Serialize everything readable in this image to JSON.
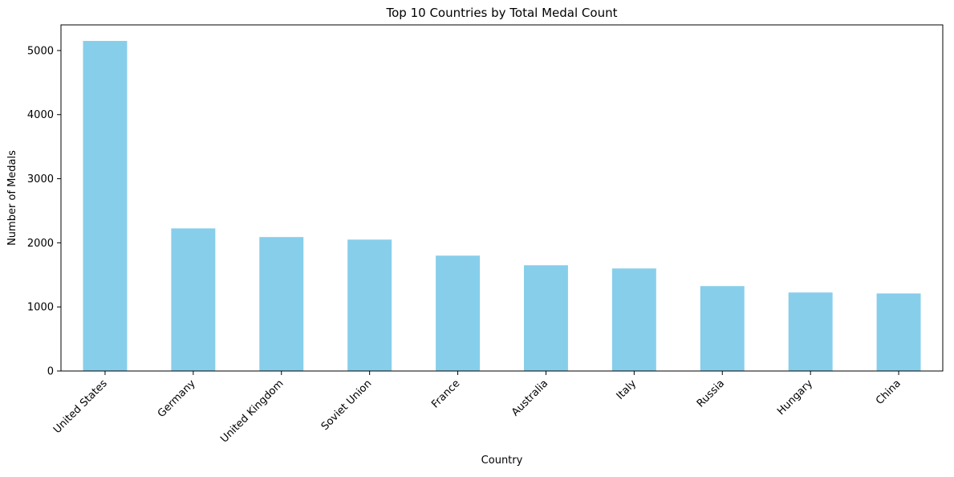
{
  "chart_data": {
    "type": "bar",
    "title": "Top 10 Countries by Total Medal Count",
    "xlabel": "Country",
    "ylabel": "Number of Medals",
    "categories": [
      "United States",
      "Germany",
      "United Kingdom",
      "Soviet Union",
      "France",
      "Australia",
      "Italy",
      "Russia",
      "Hungary",
      "China"
    ],
    "values": [
      5150,
      2225,
      2090,
      2050,
      1800,
      1650,
      1600,
      1325,
      1225,
      1210
    ],
    "ylim": [
      0,
      5400
    ],
    "yticks": [
      0,
      1000,
      2000,
      3000,
      4000,
      5000
    ],
    "ytick_labels": [
      "0",
      "1000",
      "2000",
      "3000",
      "4000",
      "5000"
    ],
    "bar_color": "#87ceeb",
    "grid": false,
    "legend": "none"
  }
}
